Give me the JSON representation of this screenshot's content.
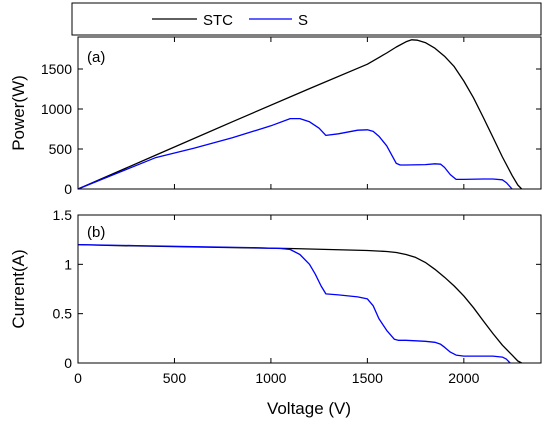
{
  "legend": {
    "items": [
      {
        "label": "STC",
        "color": "#000000"
      },
      {
        "label": "S",
        "color": "#0000ff"
      }
    ]
  },
  "chart_data": [
    {
      "type": "line",
      "panel_label": "(a)",
      "ylabel": "Power(W)",
      "xlabel": "",
      "xlim": [
        0,
        2400
      ],
      "ylim": [
        0,
        1900
      ],
      "yticks": [
        0,
        500,
        1000,
        1500
      ],
      "xticks": [
        0,
        500,
        1000,
        1500,
        2000
      ],
      "show_xtick_labels": false,
      "series": [
        {
          "name": "STC",
          "color": "#000000",
          "x": [
            0,
            400,
            800,
            1200,
            1500,
            1600,
            1650,
            1700,
            1730,
            1760,
            1800,
            1850,
            1900,
            1950,
            2000,
            2050,
            2100,
            2150,
            2200,
            2250,
            2280,
            2300
          ],
          "y": [
            0,
            420,
            840,
            1255,
            1560,
            1700,
            1775,
            1840,
            1865,
            1860,
            1830,
            1760,
            1660,
            1530,
            1350,
            1140,
            900,
            650,
            400,
            170,
            50,
            0
          ]
        },
        {
          "name": "S",
          "color": "#0000ff",
          "x": [
            0,
            200,
            400,
            600,
            800,
            1000,
            1100,
            1150,
            1200,
            1250,
            1285,
            1350,
            1450,
            1500,
            1530,
            1560,
            1600,
            1650,
            1670,
            1700,
            1800,
            1850,
            1880,
            1900,
            1930,
            1960,
            2000,
            2100,
            2150,
            2200,
            2220,
            2250
          ],
          "y": [
            0,
            195,
            390,
            510,
            640,
            790,
            880,
            880,
            840,
            760,
            670,
            690,
            735,
            740,
            720,
            660,
            540,
            320,
            300,
            300,
            305,
            315,
            310,
            270,
            180,
            120,
            120,
            125,
            125,
            115,
            80,
            0
          ]
        }
      ]
    },
    {
      "type": "line",
      "panel_label": "(b)",
      "ylabel": "Current(A)",
      "xlabel": "Voltage (V)",
      "xlim": [
        0,
        2400
      ],
      "ylim": [
        0,
        1.5
      ],
      "yticks": [
        0,
        0.5,
        1,
        1.5
      ],
      "ytick_labels": [
        "0",
        "0.5",
        "1",
        "1.5"
      ],
      "xticks": [
        0,
        500,
        1000,
        1500,
        2000
      ],
      "xtick_labels": [
        "0",
        "500",
        "1000",
        "1500",
        "2000"
      ],
      "show_xtick_labels": true,
      "series": [
        {
          "name": "STC",
          "color": "#000000",
          "x": [
            0,
            200,
            500,
            800,
            1100,
            1300,
            1500,
            1600,
            1650,
            1700,
            1750,
            1800,
            1850,
            1900,
            1950,
            2000,
            2050,
            2100,
            2150,
            2200,
            2250,
            2280,
            2300
          ],
          "y": [
            1.2,
            1.19,
            1.18,
            1.17,
            1.16,
            1.15,
            1.14,
            1.13,
            1.12,
            1.1,
            1.07,
            1.02,
            0.95,
            0.87,
            0.78,
            0.68,
            0.56,
            0.43,
            0.3,
            0.18,
            0.08,
            0.02,
            0.0
          ],
          "interp": "linear"
        },
        {
          "name": "S",
          "color": "#0000ff",
          "x": [
            0,
            300,
            600,
            900,
            1050,
            1100,
            1150,
            1200,
            1230,
            1260,
            1285,
            1350,
            1450,
            1500,
            1530,
            1560,
            1600,
            1640,
            1660,
            1700,
            1800,
            1850,
            1880,
            1900,
            1930,
            1960,
            2000,
            2100,
            2150,
            2200,
            2220,
            2240
          ],
          "y": [
            1.2,
            1.19,
            1.18,
            1.17,
            1.16,
            1.15,
            1.1,
            1.0,
            0.9,
            0.78,
            0.7,
            0.69,
            0.67,
            0.65,
            0.58,
            0.45,
            0.33,
            0.24,
            0.23,
            0.23,
            0.22,
            0.21,
            0.19,
            0.16,
            0.11,
            0.08,
            0.07,
            0.07,
            0.07,
            0.06,
            0.04,
            0.0
          ]
        }
      ]
    }
  ]
}
